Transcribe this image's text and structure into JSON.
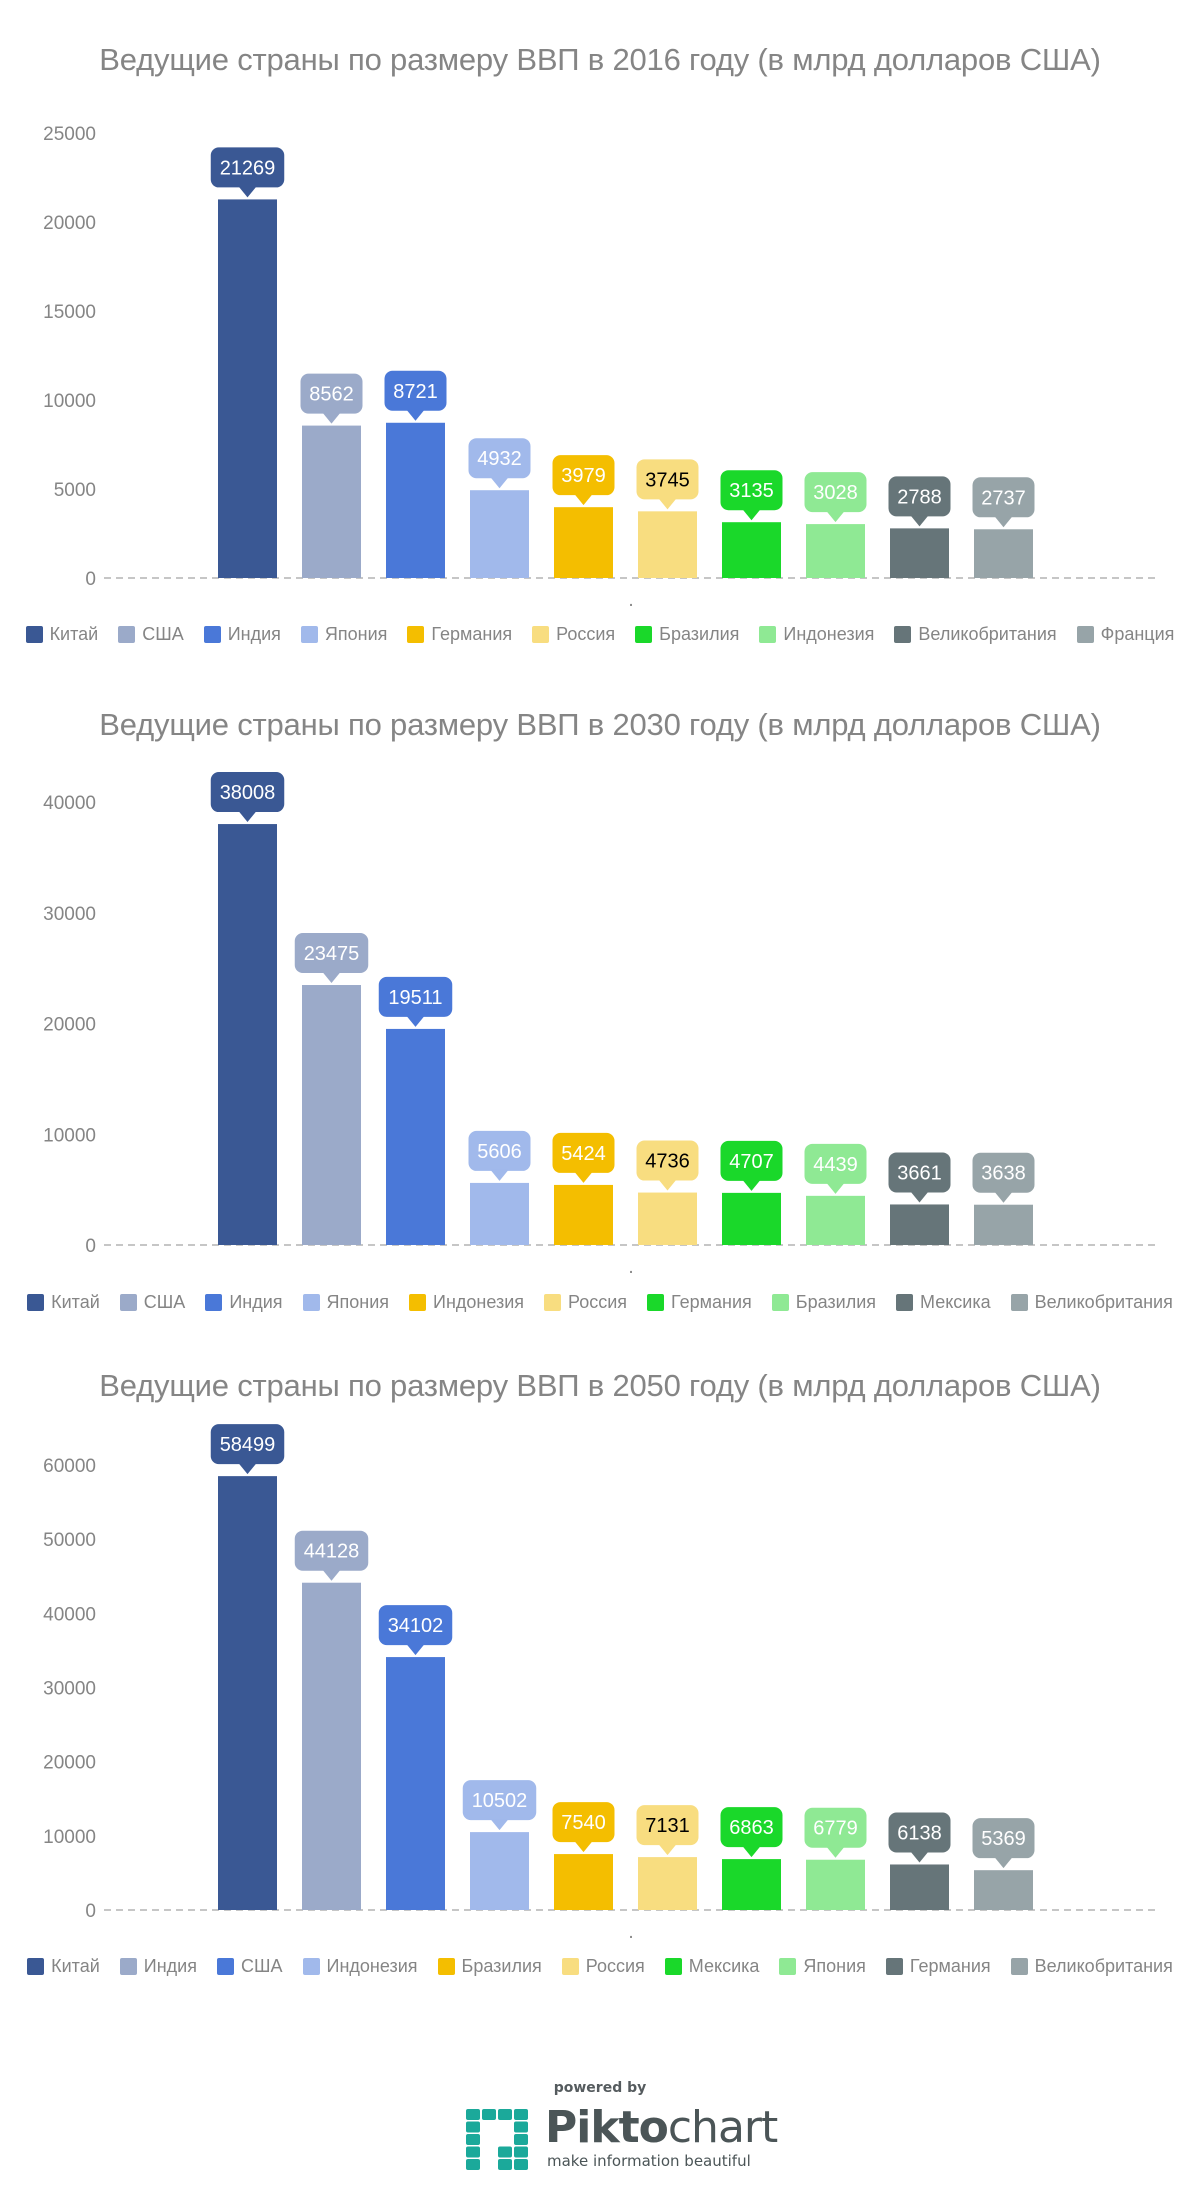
{
  "chart_data": [
    {
      "type": "bar",
      "title": "Ведущие страны по размеру ВВП в 2016 году (в млрд долларов США)",
      "xlabel": ".",
      "ylabel": "",
      "ylim": [
        0,
        25000
      ],
      "yticks": [
        0,
        5000,
        10000,
        15000,
        20000,
        25000
      ],
      "grid": false,
      "legend_position": "bottom",
      "categories": [
        "Китай",
        "США",
        "Индия",
        "Япония",
        "Германия",
        "Россия",
        "Бразилия",
        "Индонезия",
        "Великобритания",
        "Франция"
      ],
      "values": [
        21269,
        8562,
        8721,
        4932,
        3979,
        3745,
        3135,
        3028,
        2788,
        2737
      ],
      "colors": [
        "#3A5894",
        "#9BAAC9",
        "#4A78D8",
        "#A1B9EB",
        "#F4BE00",
        "#F8DD80",
        "#1AD82A",
        "#8FE994",
        "#667579",
        "#97A4A8"
      ]
    },
    {
      "type": "bar",
      "title": "Ведущие страны по размеру ВВП в 2030 году (в млрд долларов США)",
      "xlabel": ".",
      "ylabel": "",
      "ylim": [
        0,
        40000
      ],
      "yticks": [
        0,
        10000,
        20000,
        30000,
        40000
      ],
      "grid": false,
      "legend_position": "bottom",
      "categories": [
        "Китай",
        "США",
        "Индия",
        "Япония",
        "Индонезия",
        "Россия",
        "Германия",
        "Бразилия",
        "Мексика",
        "Великобритания"
      ],
      "values": [
        38008,
        23475,
        19511,
        5606,
        5424,
        4736,
        4707,
        4439,
        3661,
        3638
      ],
      "colors": [
        "#3A5894",
        "#9BAAC9",
        "#4A78D8",
        "#A1B9EB",
        "#F4BE00",
        "#F8DD80",
        "#1AD82A",
        "#8FE994",
        "#667579",
        "#97A4A8"
      ]
    },
    {
      "type": "bar",
      "title": "Ведущие страны по размеру ВВП в 2050 году (в млрд долларов США)",
      "xlabel": ".",
      "ylabel": "",
      "ylim": [
        0,
        60000
      ],
      "yticks": [
        0,
        10000,
        20000,
        30000,
        40000,
        50000,
        60000
      ],
      "grid": false,
      "legend_position": "bottom",
      "categories": [
        "Китай",
        "Индия",
        "США",
        "Индонезия",
        "Бразилия",
        "Россия",
        "Мексика",
        "Япония",
        "Германия",
        "Великобритания"
      ],
      "values": [
        58499,
        44128,
        34102,
        10502,
        7540,
        7131,
        6863,
        6779,
        6138,
        5369
      ],
      "colors": [
        "#3A5894",
        "#9BAAC9",
        "#4A78D8",
        "#A1B9EB",
        "#F4BE00",
        "#F8DD80",
        "#1AD82A",
        "#8FE994",
        "#667579",
        "#97A4A8"
      ]
    }
  ],
  "label_text_colors": [
    "#FFFFFF",
    "#FFFFFF",
    "#FFFFFF",
    "#FFFFFF",
    "#FFFFFF",
    "#000000",
    "#FFFFFF",
    "#FFFFFF",
    "#FFFFFF",
    "#FFFFFF"
  ],
  "footer": {
    "powered_by": "powered by",
    "brand_bold": "Pikto",
    "brand_light": "chart",
    "tagline": "make information beautiful",
    "brand_color": "#1BA99A"
  }
}
